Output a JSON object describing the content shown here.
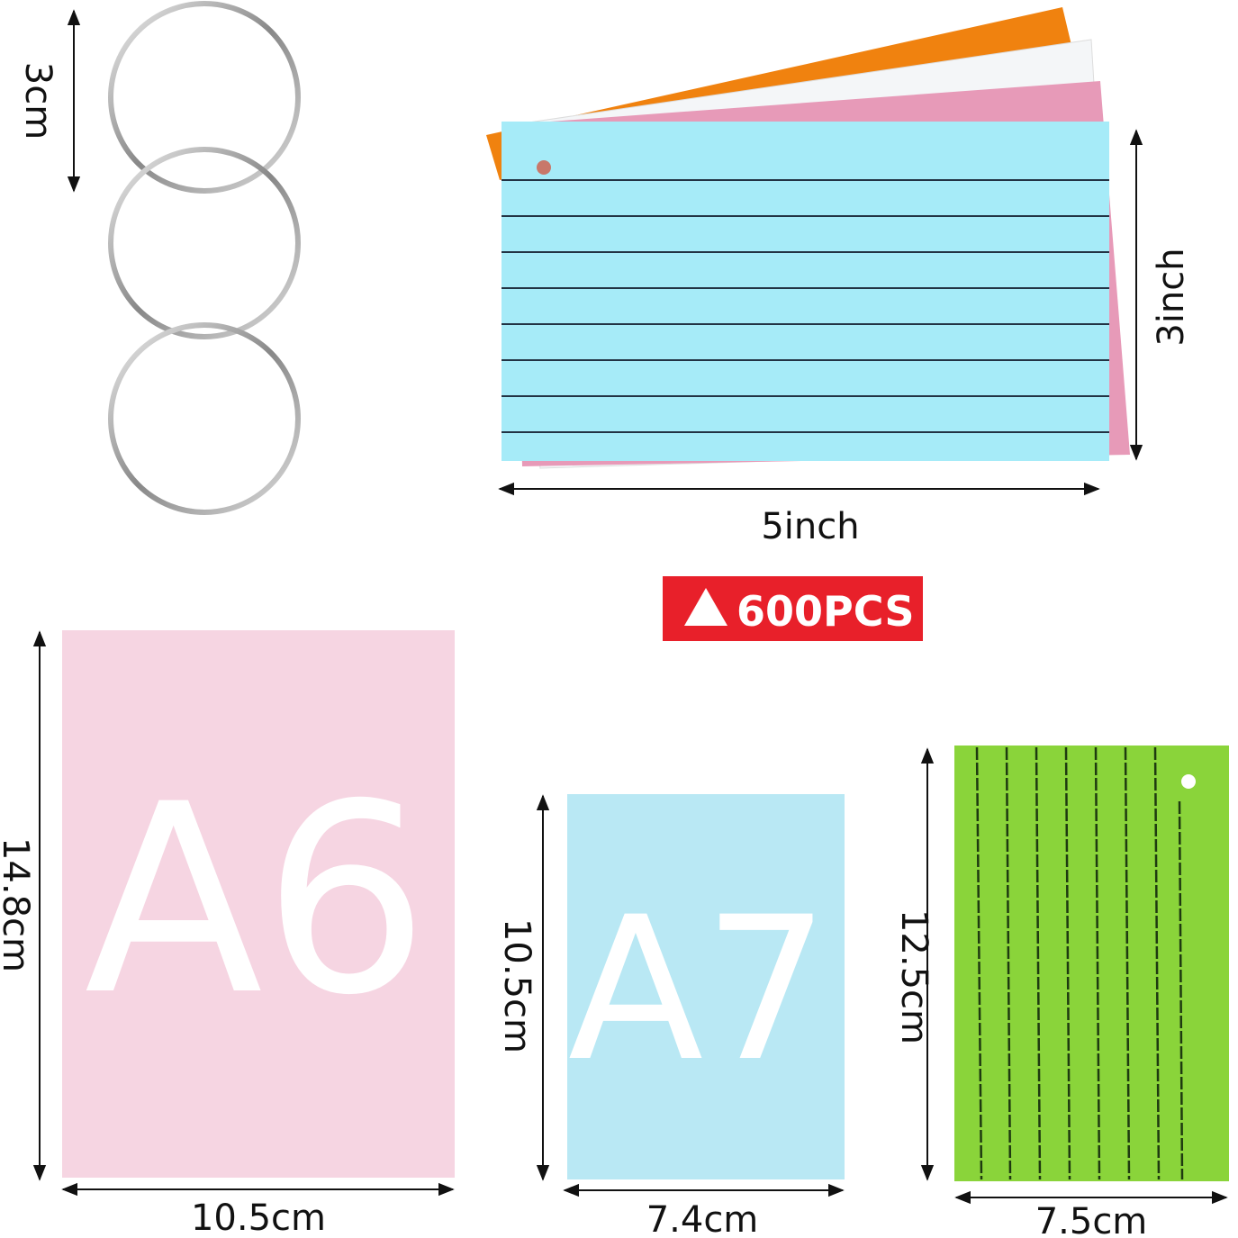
{
  "rings": {
    "height_label": "3cm"
  },
  "index_cards": {
    "width_label": "5inch",
    "height_label": "3inch",
    "badge": "600PCS"
  },
  "a6": {
    "label": "A6",
    "height_label": "14.8cm",
    "width_label": "10.5cm"
  },
  "a7": {
    "label": "A7",
    "height_label": "10.5cm",
    "width_label": "7.4cm"
  },
  "green_card": {
    "height_label": "12.5cm",
    "width_label": "7.5cm"
  }
}
